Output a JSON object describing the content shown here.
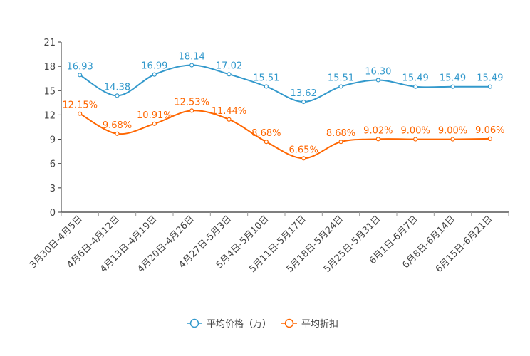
{
  "chart_data": {
    "type": "line",
    "title": "",
    "categories": [
      "3月30日-4月5日",
      "4月6日-4月12日",
      "4月13日-4月19日",
      "4月20日-4月26日",
      "4月27日-5月3日",
      "5月4日-5月10日",
      "5月11日-5月17日",
      "5月18日-5月24日",
      "5月25日-5月31日",
      "6月1日-6月7日",
      "6月8日-6月14日",
      "6月15日-6月21日"
    ],
    "yticks": [
      0,
      3,
      6,
      9,
      12,
      15,
      18,
      21
    ],
    "ylim": [
      0,
      21
    ],
    "grid": false,
    "legend_position": "bottom-center",
    "series": [
      {
        "name": "平均价格（万）",
        "color": "#3399cc",
        "values": [
          16.93,
          14.38,
          16.99,
          18.14,
          17.02,
          15.51,
          13.62,
          15.51,
          16.3,
          15.49,
          15.49,
          15.49
        ],
        "labels": [
          "16.93",
          "14.38",
          "16.99",
          "18.14",
          "17.02",
          "15.51",
          "13.62",
          "15.51",
          "16.30",
          "15.49",
          "15.49",
          "15.49"
        ]
      },
      {
        "name": "平均折扣",
        "color": "#ff6600",
        "values": [
          12.15,
          9.68,
          10.91,
          12.53,
          11.44,
          8.68,
          6.65,
          8.68,
          9.02,
          9.0,
          9.0,
          9.06
        ],
        "labels": [
          "12.15%",
          "9.68%",
          "10.91%",
          "12.53%",
          "11.44%",
          "8.68%",
          "6.65%",
          "8.68%",
          "9.02%",
          "9.00%",
          "9.00%",
          "9.06%"
        ]
      }
    ]
  }
}
